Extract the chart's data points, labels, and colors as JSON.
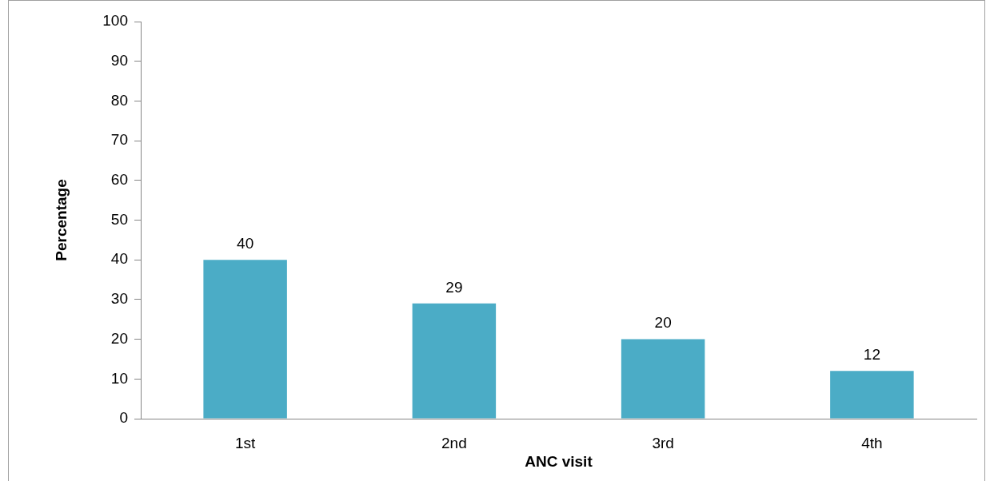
{
  "chart_data": {
    "type": "bar",
    "xlabel": "ANC visit",
    "ylabel": "Percentage",
    "categories": [
      "1st",
      "2nd",
      "3rd",
      "4th"
    ],
    "values": [
      40,
      29,
      20,
      12
    ],
    "color": "#4bacc6",
    "ylim": [
      0,
      100
    ],
    "yticks": [
      0,
      10,
      20,
      30,
      40,
      50,
      60,
      70,
      80,
      90,
      100
    ],
    "data_labels": true
  }
}
